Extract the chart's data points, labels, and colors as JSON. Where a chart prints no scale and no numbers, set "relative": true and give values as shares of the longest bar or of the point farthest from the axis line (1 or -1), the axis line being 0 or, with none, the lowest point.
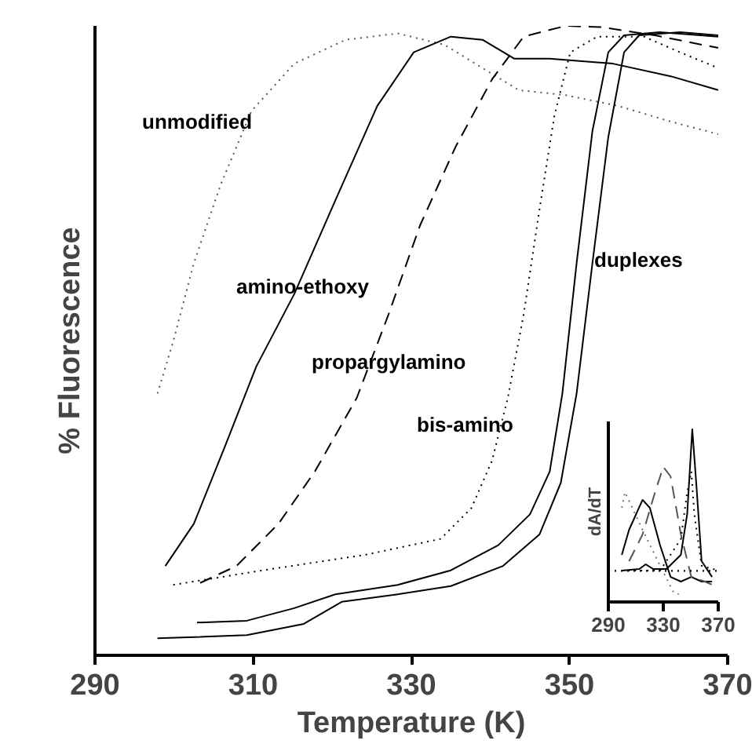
{
  "chart_data": [
    {
      "type": "line",
      "xlabel": "Temperature (K)",
      "ylabel": "% Fluorescence",
      "xlim": [
        290,
        370
      ],
      "xticks": [
        290,
        310,
        330,
        350,
        370
      ],
      "relative": true,
      "grid": false,
      "series": [
        {
          "color": "#555555",
          "line_style": "dotted",
          "x": [
            297.9,
            299.9,
            302.5,
            305.9,
            309.8,
            315.2,
            321.7,
            328.3,
            334.2,
            339.0,
            343.6,
            349.5,
            356.1,
            362.8,
            368.8
          ],
          "values": [
            0.416,
            0.499,
            0.623,
            0.748,
            0.865,
            0.94,
            0.978,
            0.988,
            0.97,
            0.933,
            0.898,
            0.89,
            0.873,
            0.848,
            0.828
          ]
        },
        {
          "color": "#000000",
          "line_style": "solid",
          "x": [
            298.9,
            302.5,
            306.5,
            310.4,
            315.2,
            320.4,
            325.7,
            330.3,
            335.0,
            339.0,
            343.0,
            347.5,
            355.5,
            362.8,
            368.8
          ],
          "values": [
            0.142,
            0.209,
            0.334,
            0.459,
            0.574,
            0.723,
            0.873,
            0.958,
            0.983,
            0.978,
            0.948,
            0.948,
            0.94,
            0.92,
            0.898
          ]
        },
        {
          "color": "#000000",
          "line_style": "dashed",
          "x": [
            303.3,
            307.9,
            313.2,
            317.8,
            323.1,
            327.1,
            331.1,
            335.6,
            340.2,
            344.2,
            349.5,
            354.1,
            360.8,
            368.8
          ],
          "values": [
            0.115,
            0.142,
            0.209,
            0.292,
            0.409,
            0.541,
            0.683,
            0.808,
            0.915,
            0.983,
            1.0,
            0.998,
            0.985,
            0.965
          ]
        },
        {
          "color": "#000000",
          "line_style": "dotted",
          "x": [
            299.9,
            311.2,
            324.3,
            333.7,
            337.6,
            340.2,
            342.2,
            344.2,
            346.2,
            348.1,
            350.1,
            353.5,
            359.4,
            364.0,
            368.8
          ],
          "values": [
            0.112,
            0.135,
            0.16,
            0.185,
            0.234,
            0.309,
            0.409,
            0.541,
            0.708,
            0.858,
            0.958,
            0.983,
            0.983,
            0.958,
            0.933
          ]
        },
        {
          "color": "#000000",
          "line_style": "solid",
          "x": [
            302.9,
            309.2,
            315.2,
            320.4,
            328.3,
            335.0,
            341.0,
            345.0,
            347.5,
            349.1,
            350.9,
            352.9,
            354.9,
            356.9,
            361.4,
            368.8
          ],
          "values": [
            0.052,
            0.055,
            0.075,
            0.097,
            0.112,
            0.135,
            0.175,
            0.224,
            0.292,
            0.416,
            0.623,
            0.833,
            0.958,
            0.985,
            0.99,
            0.983
          ]
        },
        {
          "color": "#000000",
          "line_style": "solid",
          "x": [
            297.9,
            309.2,
            316.4,
            321.2,
            328.3,
            335.0,
            341.6,
            346.2,
            348.9,
            350.9,
            352.9,
            354.9,
            356.9,
            358.8,
            364.0,
            368.8
          ],
          "values": [
            0.027,
            0.032,
            0.05,
            0.085,
            0.097,
            0.11,
            0.142,
            0.192,
            0.274,
            0.416,
            0.623,
            0.823,
            0.958,
            0.985,
            0.99,
            0.985
          ]
        }
      ],
      "annotations": [
        "unmodified",
        "amino-ethoxy",
        "propargylamino",
        "bis-amino",
        "duplexes"
      ]
    },
    {
      "type": "line",
      "ylabel": "dA/dT",
      "xlim": [
        290,
        370
      ],
      "xticks": [
        290,
        330,
        370
      ],
      "relative": true,
      "grid": false,
      "ref_lines": [
        {
          "axis": "y",
          "value": 0.18,
          "line_style": "dotted",
          "color": "#000000"
        }
      ],
      "series": [
        {
          "color": "#777777",
          "line_style": "dotted",
          "x": [
            299.8,
            302.1,
            314.9,
            327.7,
            337.5,
            341.3
          ],
          "values": [
            0.545,
            0.636,
            0.418,
            0.209,
            0.055,
            0.045
          ]
        },
        {
          "color": "#000000",
          "line_style": "solid",
          "x": [
            299.8,
            305.1,
            314.9,
            320.2,
            327.7,
            335.3,
            342.8,
            350.4,
            357.9,
            365.5
          ],
          "values": [
            0.273,
            0.418,
            0.591,
            0.545,
            0.327,
            0.145,
            0.118,
            0.145,
            0.118,
            0.118
          ]
        },
        {
          "color": "#555555",
          "line_style": "dashed",
          "x": [
            305.1,
            314.9,
            324.0,
            330.0,
            335.3,
            342.8,
            350.4,
            360.2,
            365.5
          ],
          "values": [
            0.236,
            0.391,
            0.636,
            0.782,
            0.727,
            0.391,
            0.145,
            0.118,
            0.1
          ]
        },
        {
          "color": "#000000",
          "line_style": "dotted",
          "x": [
            299.8,
            327.7,
            342.8,
            347.4,
            350.4,
            352.6,
            357.9,
            370.0
          ],
          "values": [
            0.182,
            0.182,
            0.364,
            0.636,
            0.755,
            0.509,
            0.209,
            0.182
          ]
        },
        {
          "color": "#000000",
          "line_style": "solid",
          "x": [
            299.8,
            312.6,
            317.2,
            322.5,
            332.3,
            342.8,
            347.4,
            351.1,
            354.2,
            357.9,
            365.5
          ],
          "values": [
            0.182,
            0.191,
            0.218,
            0.191,
            0.191,
            0.273,
            0.509,
            1.0,
            0.664,
            0.236,
            0.145
          ]
        }
      ]
    }
  ]
}
